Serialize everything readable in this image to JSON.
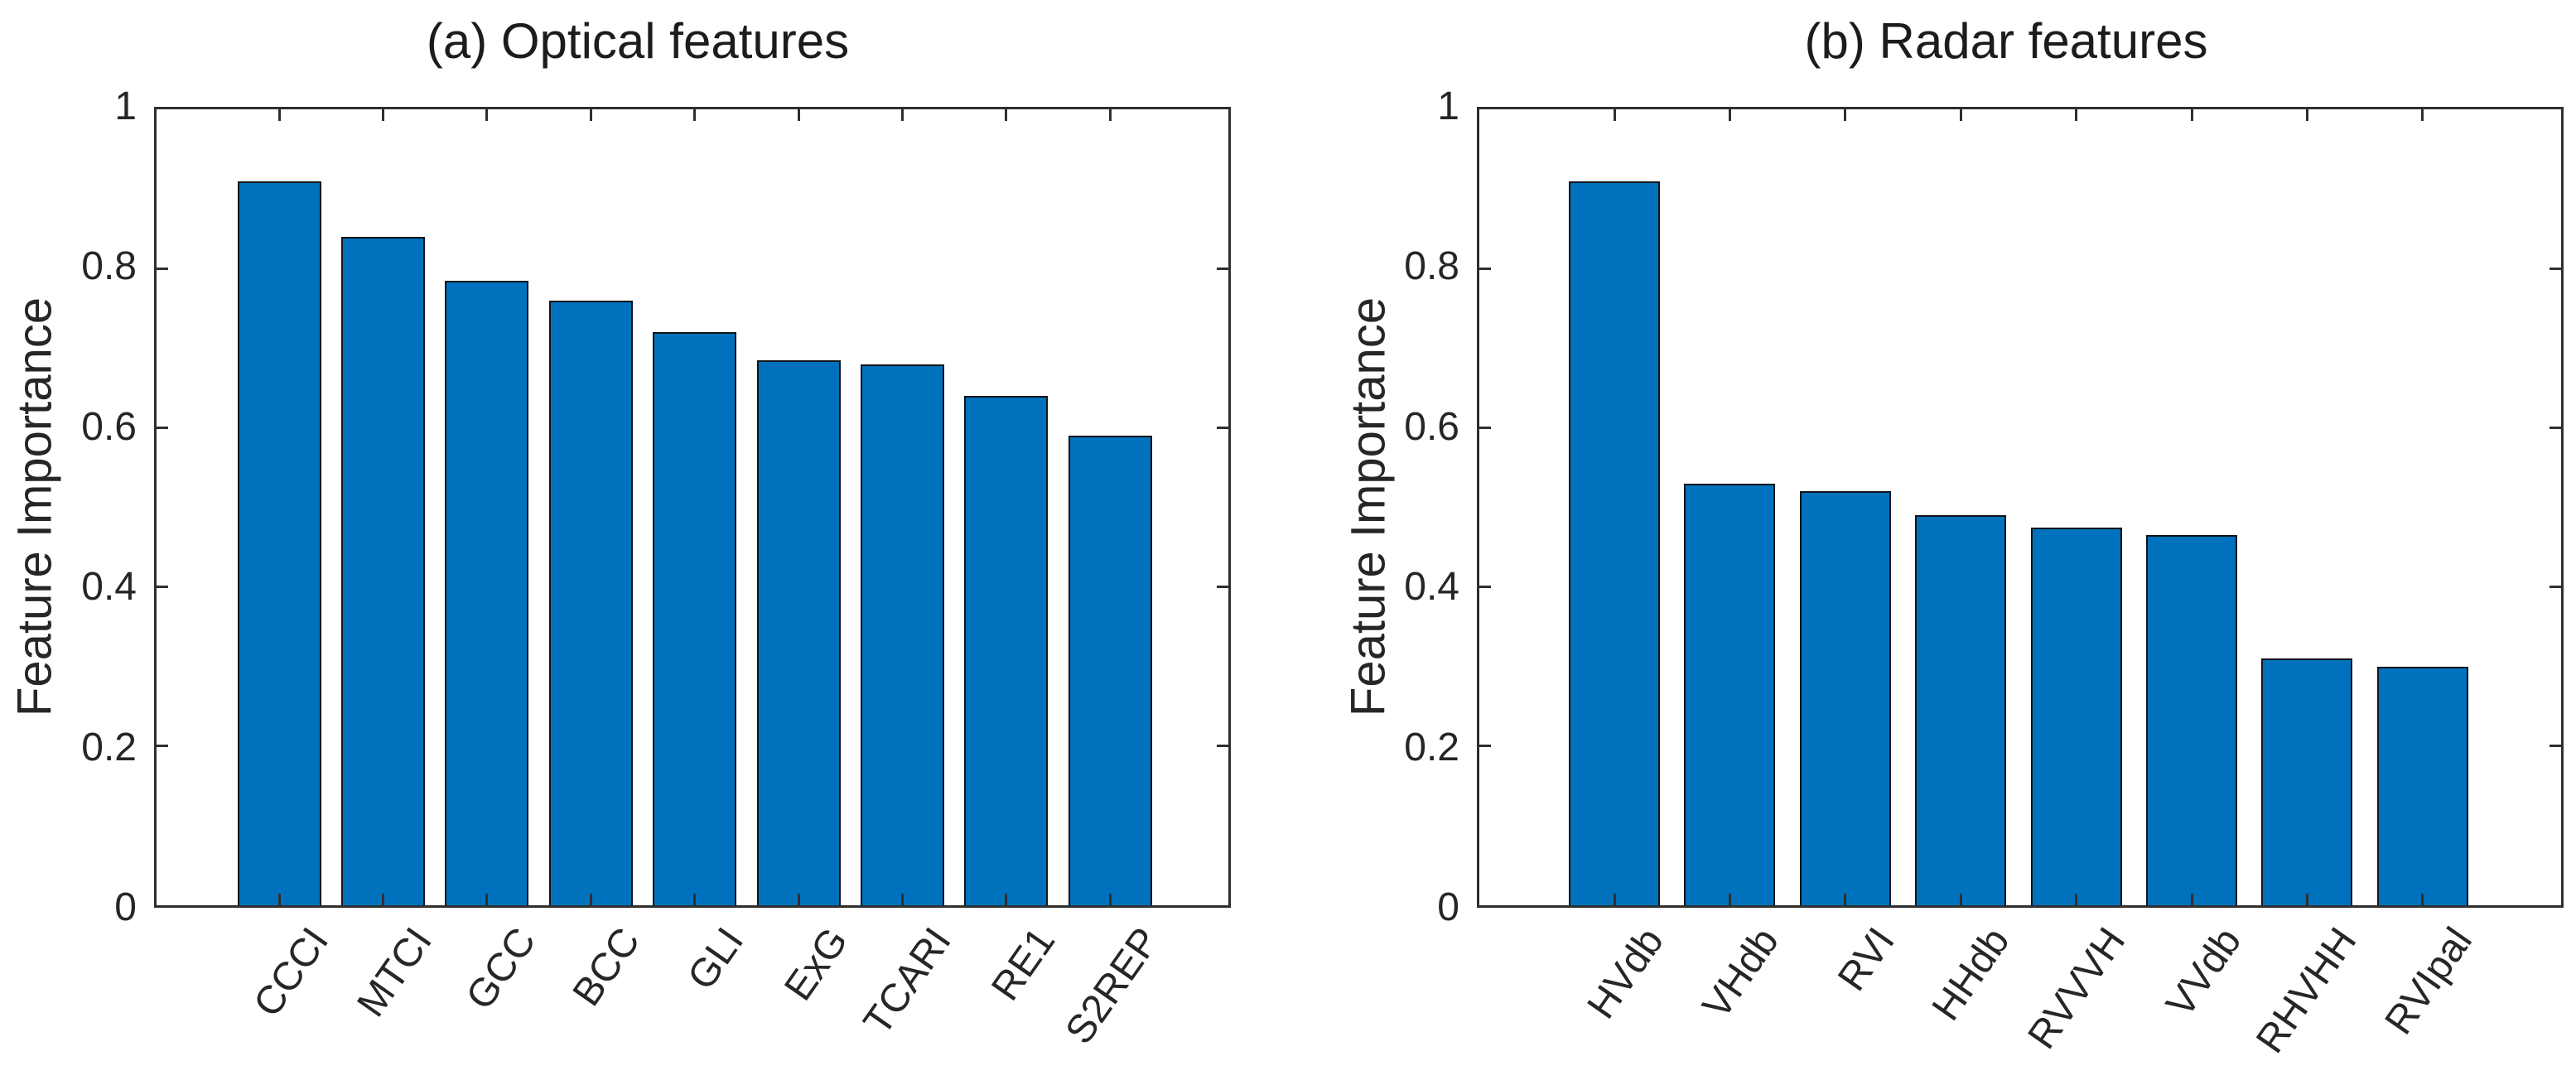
{
  "figure": {
    "background": "#ffffff",
    "description": "Two side-by-side bar charts of feature importance"
  },
  "styles": {
    "bar_fill": "#0072BD",
    "bar_edge": "#10141a",
    "axis_color": "#2f2f2f",
    "text_color": "#262626",
    "title_color": "#1c1c1c"
  },
  "chart_data": [
    {
      "type": "bar",
      "title": "(a) Optical features",
      "xlabel": "",
      "ylabel": "Feature Importance",
      "categories": [
        "CCCI",
        "MTCI",
        "GCC",
        "BCC",
        "GLI",
        "ExG",
        "TCARI",
        "RE1",
        "S2REP"
      ],
      "values": [
        0.91,
        0.84,
        0.785,
        0.76,
        0.72,
        0.685,
        0.68,
        0.64,
        0.59
      ],
      "ylim": [
        0,
        1
      ],
      "yticks": [
        0,
        0.2,
        0.4,
        0.6,
        0.8,
        1
      ],
      "ytick_labels": [
        "0",
        "0.2",
        "0.4",
        "0.6",
        "0.8",
        "1"
      ],
      "xtick_rotation_deg": 55,
      "bar_color": "#0072BD",
      "grid": false,
      "legend": null
    },
    {
      "type": "bar",
      "title": "(b) Radar features",
      "xlabel": "",
      "ylabel": "Feature Importance",
      "categories": [
        "HVdb",
        "VHdb",
        "RVI",
        "HHdb",
        "RVVVH",
        "VVdb",
        "RHVHH",
        "RVIpal"
      ],
      "values": [
        0.91,
        0.53,
        0.52,
        0.49,
        0.475,
        0.465,
        0.31,
        0.3
      ],
      "ylim": [
        0,
        1
      ],
      "yticks": [
        0,
        0.2,
        0.4,
        0.6,
        0.8,
        1
      ],
      "ytick_labels": [
        "0",
        "0.2",
        "0.4",
        "0.6",
        "0.8",
        "1"
      ],
      "xtick_rotation_deg": 55,
      "bar_color": "#0072BD",
      "grid": false,
      "legend": null
    }
  ]
}
